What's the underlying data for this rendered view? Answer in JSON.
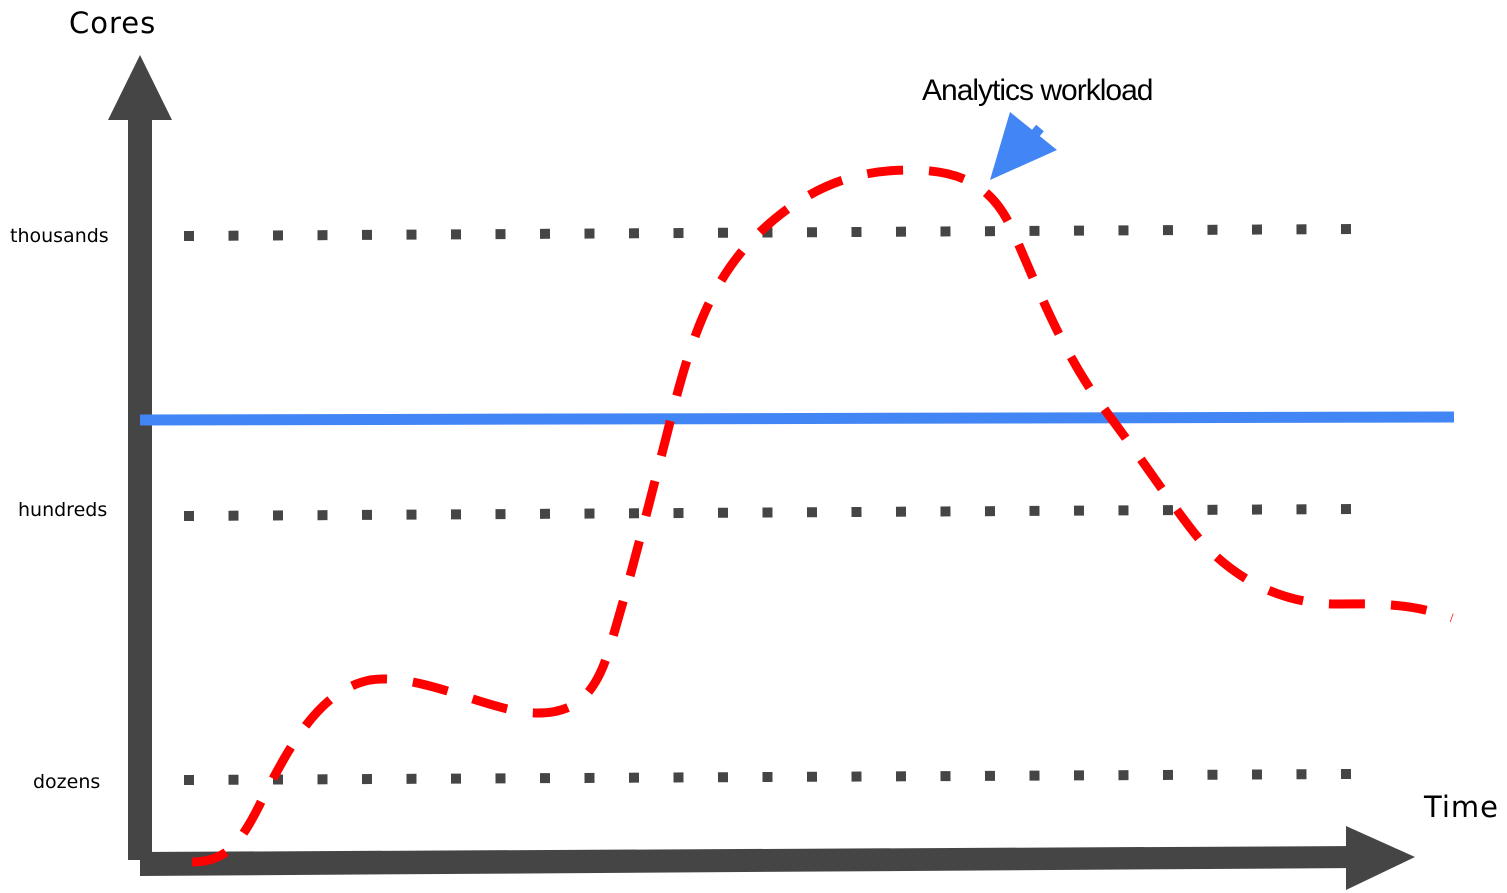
{
  "labels": {
    "y_axis": "Cores",
    "x_axis": "Time",
    "annotation": "Analytics workload"
  },
  "levels": [
    {
      "key": "thousands",
      "label": "thousands"
    },
    {
      "key": "hundreds",
      "label": "hundreds"
    },
    {
      "key": "dozens",
      "label": "dozens"
    }
  ],
  "colors": {
    "axis": "#454545",
    "gridline": "#454545",
    "capacity_line": "#4285f4",
    "workload_curve": "#ff0000",
    "annotation_arrow": "#4285f4",
    "text": "#000000"
  },
  "icons": {
    "annotation_pointer": "arrow-pointer-icon"
  }
}
